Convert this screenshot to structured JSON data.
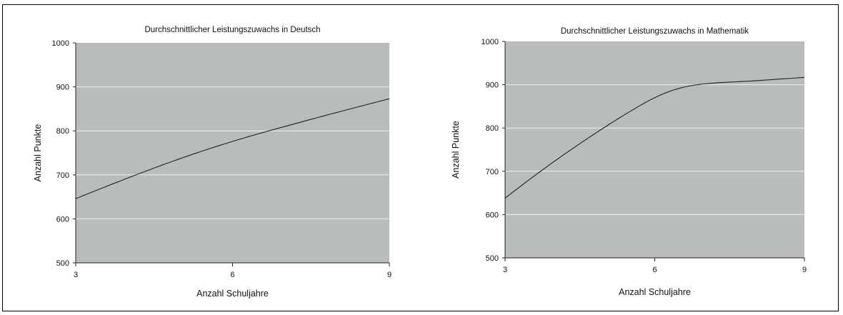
{
  "chart_data": [
    {
      "type": "line",
      "title": "Durchschnittlicher Leistungszuwachs in Deutsch",
      "xlabel": "Anzahl Schuljahre",
      "ylabel": "Anzahl Punkte",
      "xlim": [
        3,
        9
      ],
      "ylim": [
        500,
        1000
      ],
      "xticks": [
        3,
        6,
        9
      ],
      "yticks": [
        500,
        600,
        700,
        800,
        900,
        1000
      ],
      "grid": true,
      "colors": {
        "plot_bg": "#b8bcbc",
        "grid": "#eeeeee",
        "line": "#222222"
      },
      "series": [
        {
          "x": [
            3,
            4,
            5,
            6,
            7,
            8,
            9
          ],
          "y": [
            646,
            693,
            737,
            776,
            810,
            842,
            873
          ]
        }
      ]
    },
    {
      "type": "line",
      "title": "Durchschnittlicher Leistungszuwachs in Mathematik",
      "xlabel": "Anzahl Schuljahre",
      "ylabel": "Anzahl Punkte",
      "xlim": [
        3,
        9
      ],
      "ylim": [
        500,
        1000
      ],
      "xticks": [
        3,
        6,
        9
      ],
      "yticks": [
        500,
        600,
        700,
        800,
        900,
        1000
      ],
      "grid": true,
      "colors": {
        "plot_bg": "#b8bcbc",
        "grid": "#eeeeee",
        "line": "#222222"
      },
      "series": [
        {
          "x": [
            3,
            3.5,
            4,
            4.5,
            5,
            5.5,
            6,
            6.5,
            7,
            7.5,
            8,
            8.5,
            9
          ],
          "y": [
            638,
            682,
            724,
            764,
            802,
            838,
            870,
            892,
            902,
            906,
            909,
            913,
            917
          ]
        }
      ]
    }
  ]
}
